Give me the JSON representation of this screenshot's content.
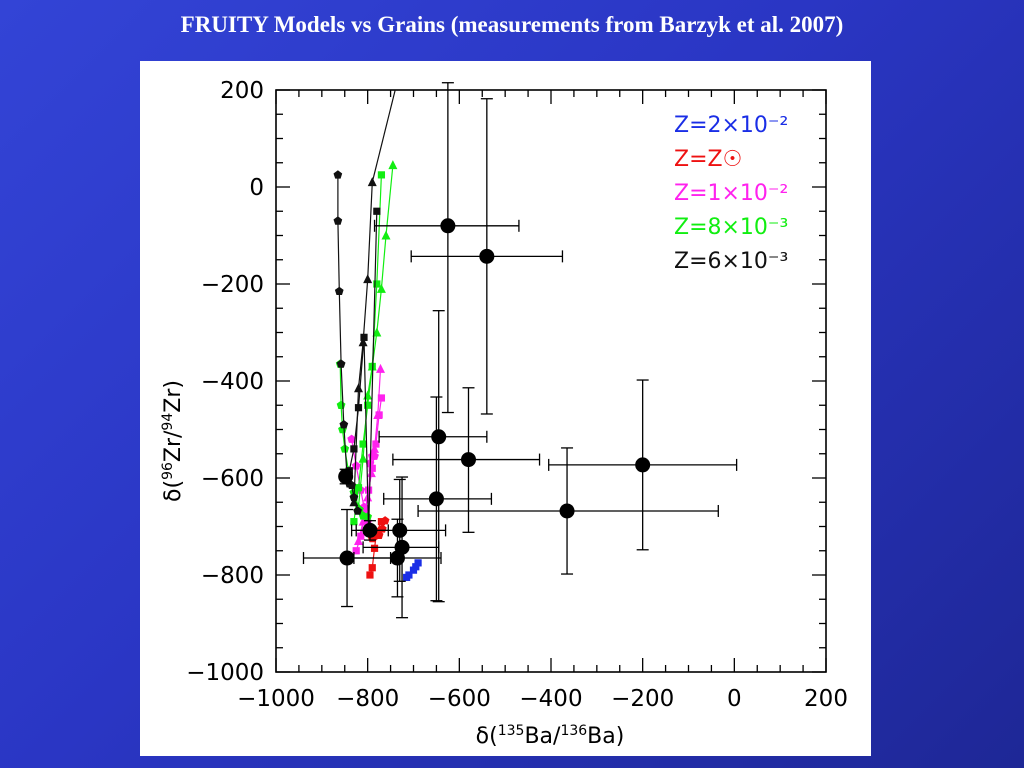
{
  "slide": {
    "title": "FRUITY Models vs Grains (measurements from Barzyk et al. 2007)"
  },
  "chart_data": {
    "type": "scatter",
    "xlabel": "δ(135Ba/136Ba)",
    "ylabel": "δ(96Zr/94Zr)",
    "xlim": [
      -1000,
      200
    ],
    "ylim": [
      -1000,
      200
    ],
    "x_ticks": [
      -1000,
      -800,
      -600,
      -400,
      -200,
      0,
      200
    ],
    "y_ticks": [
      -1000,
      -800,
      -600,
      -400,
      -200,
      0,
      200
    ],
    "x_tick_labels": [
      "−1000",
      "−800",
      "−600",
      "−400",
      "−200",
      "0",
      "200"
    ],
    "y_tick_labels": [
      "−1000",
      "−800",
      "−600",
      "−400",
      "−200",
      "0",
      "200"
    ],
    "grid": false,
    "legend_position": "top-right",
    "legend": [
      {
        "label": "Z=2×10⁻²",
        "color": "#1a2ee6"
      },
      {
        "label": "Z=Z☉",
        "color": "#ee1111"
      },
      {
        "label": "Z=1×10⁻²",
        "color": "#ff22ee"
      },
      {
        "label": "Z=8×10⁻³",
        "color": "#11ee11"
      },
      {
        "label": "Z=6×10⁻³",
        "color": "#111111"
      }
    ],
    "model_series": [
      {
        "name": "Z=2×10⁻²",
        "color": "#1a2ee6",
        "marker": "square",
        "x": [
          -715,
          -710,
          -700,
          -695,
          -690
        ],
        "y": [
          -805,
          -800,
          -790,
          -783,
          -775
        ]
      },
      {
        "name": "Z=Z☉",
        "color": "#ee1111",
        "marker": "square",
        "x": [
          -795,
          -790,
          -785,
          -780,
          -770
        ],
        "y": [
          -800,
          -785,
          -745,
          -710,
          -690
        ]
      },
      {
        "name": "Z=Z☉",
        "color": "#ee1111",
        "marker": "pentagon",
        "x": [
          -790,
          -785,
          -775,
          -768,
          -762
        ],
        "y": [
          -725,
          -720,
          -718,
          -705,
          -688
        ]
      },
      {
        "name": "Z=1×10⁻²",
        "color": "#ff22ee",
        "marker": "square",
        "x": [
          -825,
          -815,
          -805,
          -798,
          -790,
          -782,
          -775,
          -770
        ],
        "y": [
          -750,
          -720,
          -665,
          -625,
          -580,
          -530,
          -470,
          -435
        ]
      },
      {
        "name": "Z=1×10⁻²",
        "color": "#ff22ee",
        "marker": "pentagon",
        "x": [
          -835,
          -825,
          -815,
          -808,
          -800,
          -795,
          -790,
          -785
        ],
        "y": [
          -520,
          -575,
          -625,
          -660,
          -690,
          -570,
          -555,
          -555
        ]
      },
      {
        "name": "Z=1×10⁻²",
        "color": "#ff22ee",
        "marker": "triangle",
        "x": [
          -820,
          -810,
          -800,
          -792,
          -785,
          -778,
          -772
        ],
        "y": [
          -730,
          -690,
          -640,
          -590,
          -540,
          -470,
          -375
        ]
      },
      {
        "name": "Z=8×10⁻³",
        "color": "#11ee11",
        "marker": "pentagon",
        "x": [
          -860,
          -858,
          -855,
          -850,
          -842,
          -830,
          -818,
          -810,
          -800
        ],
        "y": [
          -365,
          -450,
          -500,
          -540,
          -585,
          -630,
          -665,
          -678,
          -680
        ]
      },
      {
        "name": "Z=8×10⁻³",
        "color": "#11ee11",
        "marker": "square",
        "x": [
          -830,
          -820,
          -810,
          -800,
          -790,
          -780,
          -770
        ],
        "y": [
          -690,
          -620,
          -530,
          -450,
          -370,
          -200,
          25
        ]
      },
      {
        "name": "Z=8×10⁻³",
        "color": "#11ee11",
        "marker": "triangle",
        "x": [
          -820,
          -810,
          -800,
          -790,
          -780,
          -770,
          -760,
          -745
        ],
        "y": [
          -660,
          -560,
          -430,
          -370,
          -300,
          -210,
          -100,
          45
        ]
      },
      {
        "name": "Z=6×10⁻³",
        "color": "#111111",
        "marker": "pentagon",
        "x": [
          -865,
          -865,
          -862,
          -858,
          -852,
          -845,
          -840,
          -835,
          -830,
          -822
        ],
        "y": [
          25,
          -70,
          -215,
          -365,
          -490,
          -595,
          -612,
          -615,
          -640,
          -668
        ]
      },
      {
        "name": "Z=6×10⁻³",
        "color": "#111111",
        "marker": "square",
        "x": [
          -850,
          -840,
          -830,
          -820,
          -808,
          -798,
          -780
        ],
        "y": [
          -590,
          -585,
          -540,
          -455,
          -310,
          -710,
          -50
        ]
      },
      {
        "name": "Z=6×10⁻³",
        "color": "#111111",
        "marker": "triangle",
        "x": [
          -830,
          -820,
          -810,
          -800,
          -790
        ],
        "y": [
          -650,
          -415,
          -320,
          -190,
          10
        ]
      },
      {
        "name": "",
        "color": "#111111",
        "marker": "line",
        "x": [
          -790,
          -740
        ],
        "y": [
          10,
          200
        ]
      }
    ],
    "grain_series": {
      "name": "",
      "color": "#000000",
      "marker": "circle",
      "points": [
        {
          "x": -625,
          "y": -80,
          "xerr_low": 160,
          "xerr_high": 155,
          "yerr_low": 385,
          "yerr_high": 295
        },
        {
          "x": -540,
          "y": -143,
          "xerr_low": 165,
          "xerr_high": 165,
          "yerr_low": 325,
          "yerr_high": 325
        },
        {
          "x": -645,
          "y": -515,
          "xerr_low": 130,
          "xerr_high": 105,
          "yerr_low": 340,
          "yerr_high": 260
        },
        {
          "x": -580,
          "y": -562,
          "xerr_low": 165,
          "xerr_high": 155,
          "yerr_low": 150,
          "yerr_high": 148
        },
        {
          "x": -200,
          "y": -573,
          "xerr_low": 205,
          "xerr_high": 205,
          "yerr_low": 175,
          "yerr_high": 175
        },
        {
          "x": -650,
          "y": -643,
          "xerr_low": 115,
          "xerr_high": 120,
          "yerr_low": 210,
          "yerr_high": 210
        },
        {
          "x": -365,
          "y": -668,
          "xerr_low": 325,
          "xerr_high": 330,
          "yerr_low": 130,
          "yerr_high": 130
        },
        {
          "x": -730,
          "y": -708,
          "xerr_low": 95,
          "xerr_high": 100,
          "yerr_low": 105,
          "yerr_high": 105
        },
        {
          "x": -725,
          "y": -743,
          "xerr_low": 85,
          "xerr_high": 80,
          "yerr_low": 145,
          "yerr_high": 145
        },
        {
          "x": -795,
          "y": -708,
          "xerr_low": 40,
          "xerr_high": 40,
          "yerr_low": 20,
          "yerr_high": 20
        },
        {
          "x": -735,
          "y": -765,
          "xerr_low": 95,
          "xerr_high": 95,
          "yerr_low": 80,
          "yerr_high": 80
        },
        {
          "x": -845,
          "y": -765,
          "xerr_low": 95,
          "xerr_high": 95,
          "yerr_low": 100,
          "yerr_high": 100
        },
        {
          "x": -848,
          "y": -597,
          "xerr_low": 10,
          "xerr_high": 10,
          "yerr_low": 15,
          "yerr_high": 15
        }
      ]
    }
  }
}
